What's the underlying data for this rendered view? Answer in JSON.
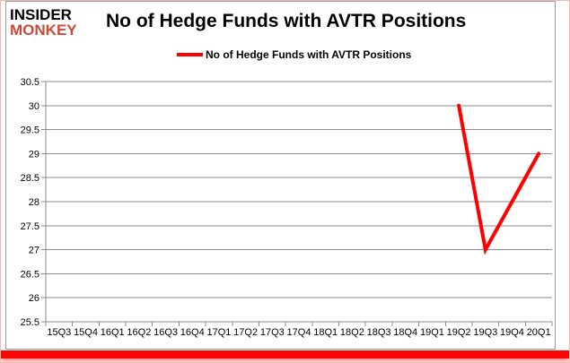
{
  "logo": {
    "line1": "INSIDER",
    "line2": "MONKEY"
  },
  "header": {
    "title": "No of Hedge Funds with AVTR Positions"
  },
  "legend": {
    "label": "No of Hedge Funds with AVTR Positions",
    "color": "#fe0000"
  },
  "colors": {
    "series_red": "#fe0000",
    "gridline": "#8c8c8c",
    "axis": "#8c8c8c",
    "tick_label": "#000000",
    "bottom_bar": "#fd0505",
    "frame_pink": "#f3b7af",
    "chart_border": "#9c9c9c",
    "logo_red": "#cd4836"
  },
  "chart_data": {
    "type": "line",
    "title": "No of Hedge Funds with AVTR Positions",
    "categories": [
      "15Q3",
      "15Q4",
      "16Q1",
      "16Q2",
      "16Q3",
      "16Q4",
      "17Q1",
      "17Q2",
      "17Q3",
      "17Q4",
      "18Q1",
      "18Q2",
      "18Q3",
      "18Q4",
      "19Q1",
      "19Q2",
      "19Q3",
      "19Q4",
      "20Q1"
    ],
    "series": [
      {
        "name": "No of Hedge Funds with AVTR Positions",
        "color": "#fe0000",
        "values": [
          null,
          null,
          null,
          null,
          null,
          null,
          null,
          null,
          null,
          null,
          null,
          null,
          null,
          null,
          null,
          30,
          27,
          28,
          29
        ]
      }
    ],
    "ylim": [
      25.5,
      30.5
    ],
    "ytick_step": 0.5,
    "y_tick_labels": [
      "25.5",
      "26",
      "26.5",
      "27",
      "27.5",
      "28",
      "28.5",
      "29",
      "29.5",
      "30",
      "30.5"
    ],
    "xlabel": "",
    "ylabel": "",
    "grid": true,
    "legend_position": "top"
  }
}
